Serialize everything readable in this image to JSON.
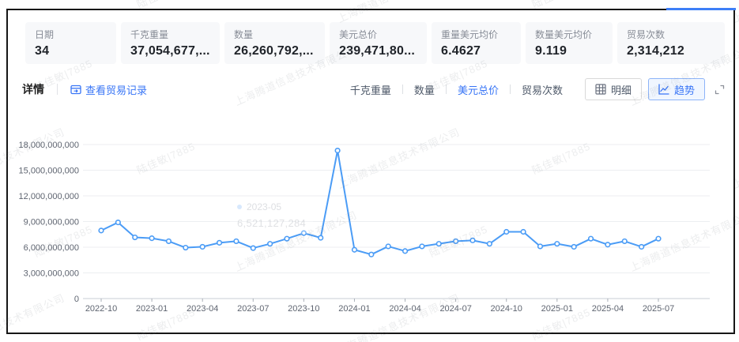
{
  "watermark": {
    "company": "上海腾道信息技术有限公司",
    "user": "陆佳敏|7885"
  },
  "summary_cards": [
    {
      "label": "日期",
      "value": "34"
    },
    {
      "label": "千克重量",
      "value": "37,054,677,..."
    },
    {
      "label": "数量",
      "value": "26,260,792,..."
    },
    {
      "label": "美元总价",
      "value": "239,471,80..."
    },
    {
      "label": "重量美元均价",
      "value": "6.4627"
    },
    {
      "label": "数量美元均价",
      "value": "9.119"
    },
    {
      "label": "贸易次数",
      "value": "2,314,212"
    }
  ],
  "detail": {
    "title": "详情",
    "view_records_label": "查看贸易记录"
  },
  "metric_tabs": [
    {
      "label": "千克重量",
      "active": false
    },
    {
      "label": "数量",
      "active": false
    },
    {
      "label": "美元总价",
      "active": true
    },
    {
      "label": "贸易次数",
      "active": false
    }
  ],
  "view_toggles": {
    "table_label": "明细",
    "trend_label": "趋势"
  },
  "colors": {
    "accent": "#3875f6",
    "line": "#4b9cf6",
    "grid": "#eceef1",
    "axis": "#c8cdd4",
    "tick_text": "#5e6470"
  },
  "chart_data": {
    "type": "line",
    "title": "",
    "xlabel": "",
    "ylabel": "",
    "legend": "none",
    "grid": true,
    "ylim": [
      0,
      18000000000
    ],
    "y_ticks": [
      0,
      3000000000,
      6000000000,
      9000000000,
      12000000000,
      15000000000,
      18000000000
    ],
    "x_tick_every": 3,
    "x": [
      "2022-10",
      "2022-11",
      "2022-12",
      "2023-01",
      "2023-02",
      "2023-03",
      "2023-04",
      "2023-05",
      "2023-06",
      "2023-07",
      "2023-08",
      "2023-09",
      "2023-10",
      "2023-11",
      "2023-12",
      "2024-01",
      "2024-02",
      "2024-03",
      "2024-04",
      "2024-05",
      "2024-06",
      "2024-07",
      "2024-08",
      "2024-09",
      "2024-10",
      "2024-11",
      "2024-12",
      "2025-01",
      "2025-02",
      "2025-03",
      "2025-04",
      "2025-05",
      "2025-06",
      "2025-07"
    ],
    "series": [
      {
        "name": "美元总价",
        "values": [
          7950000000,
          8900000000,
          7150000000,
          7050000000,
          6700000000,
          5950000000,
          6050000000,
          6521127284,
          6700000000,
          5900000000,
          6400000000,
          7000000000,
          7650000000,
          7100000000,
          17300000000,
          5700000000,
          5150000000,
          6100000000,
          5550000000,
          6100000000,
          6400000000,
          6700000000,
          6800000000,
          6400000000,
          7800000000,
          7800000000,
          6100000000,
          6400000000,
          6050000000,
          7000000000,
          6300000000,
          6700000000,
          6050000000,
          7000000000
        ]
      }
    ],
    "tooltip": {
      "date": "2023-05",
      "value": "6,521,127,284"
    }
  }
}
